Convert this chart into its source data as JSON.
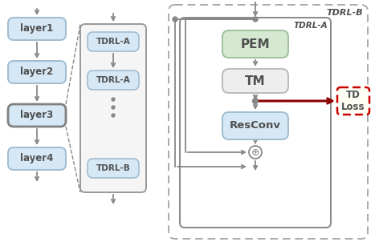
{
  "bg_color": "#ffffff",
  "layer_box_color": "#d6e8f5",
  "layer_box_edge": "#a0bcd0",
  "layer3_box_edge": "#808080",
  "tdrl_stack_bg": "#f5f5f5",
  "tdrl_stack_edge": "#999999",
  "tdrl_item_color": "#d6e8f5",
  "tdrl_item_edge": "#a0bcd0",
  "pem_color": "#d5e8d0",
  "pem_edge": "#a0c0a0",
  "tm_color": "#eeeeee",
  "tm_edge": "#bbbbbb",
  "resconv_color": "#d6e8f5",
  "resconv_edge": "#a0bcd0",
  "td_loss_color": "#ffffff",
  "td_loss_edge": "#cc0000",
  "arrow_color": "#888888",
  "dark_red_arrow": "#8b0000",
  "text_color": "#505050",
  "layers": [
    "layer1",
    "layer2",
    "layer3",
    "layer4"
  ],
  "pem_label": "PEM",
  "tm_label": "TM",
  "resconv_label": "ResConv",
  "td_loss_label": "TD\nLoss",
  "outer_label": "TDRL-B",
  "inner_label": "TDRL-A"
}
